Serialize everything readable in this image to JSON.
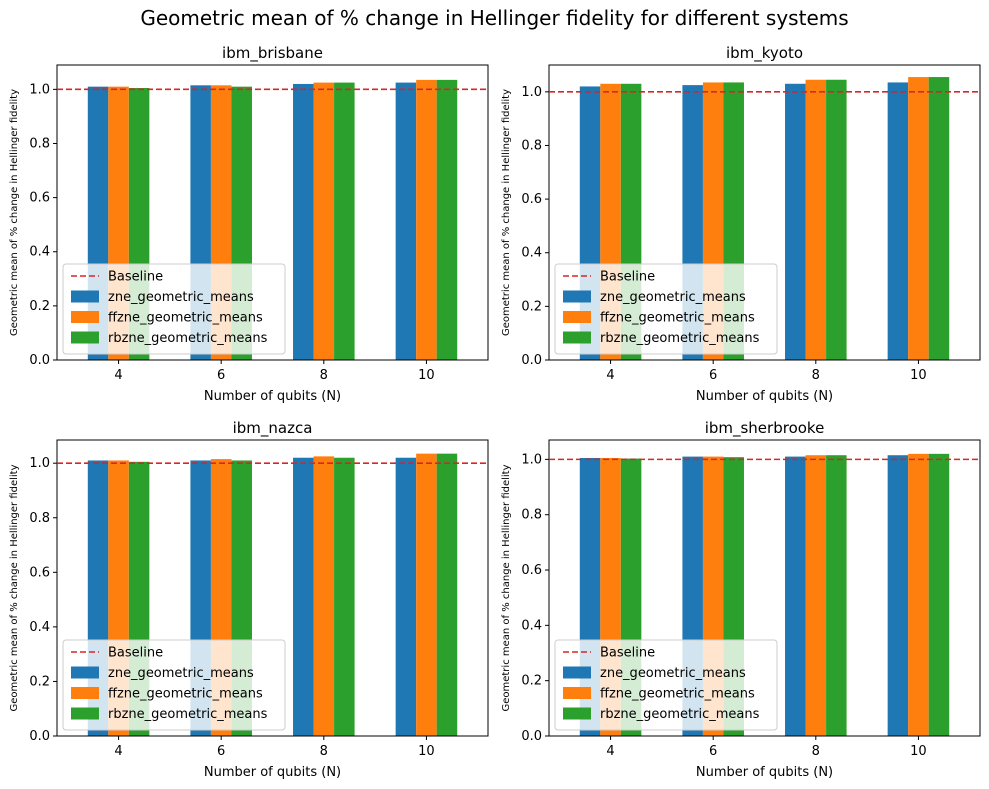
{
  "title": "Geometric mean of % change in Hellinger fidelity for different systems",
  "colors": {
    "zne": "#1f77b4",
    "ffzne": "#ff7f0e",
    "rbzne": "#2ca02c",
    "baseline": "#d62728"
  },
  "chart_data": [
    {
      "type": "bar",
      "title": "ibm_brisbane",
      "xlabel": "Number of qubits (N)",
      "ylabel": "Geometric mean of % change in Hellinger fidelity",
      "categories": [
        "4",
        "6",
        "8",
        "10"
      ],
      "ylim": [
        0,
        1.09
      ],
      "yticks": [
        "0.0",
        "0.2",
        "0.4",
        "0.6",
        "0.8",
        "1.0"
      ],
      "baseline": 1.0,
      "legend_position": "lower-left",
      "legend_baseline": "Baseline",
      "series": [
        {
          "name": "zne_geometric_means",
          "values": [
            1.01,
            1.015,
            1.02,
            1.025
          ]
        },
        {
          "name": "ffzne_geometric_means",
          "values": [
            1.01,
            1.015,
            1.025,
            1.035
          ]
        },
        {
          "name": "rbzne_geometric_means",
          "values": [
            1.005,
            1.01,
            1.025,
            1.035
          ]
        }
      ]
    },
    {
      "type": "bar",
      "title": "ibm_kyoto",
      "xlabel": "Number of qubits (N)",
      "ylabel": "Geometric mean of % change in Hellinger fidelity",
      "categories": [
        "4",
        "6",
        "8",
        "10"
      ],
      "ylim": [
        0,
        1.1
      ],
      "yticks": [
        "0.0",
        "0.2",
        "0.4",
        "0.6",
        "0.8",
        "1.0"
      ],
      "baseline": 1.0,
      "legend_position": "lower-left",
      "legend_baseline": "Baseline",
      "series": [
        {
          "name": "zne_geometric_means",
          "values": [
            1.02,
            1.025,
            1.03,
            1.035
          ]
        },
        {
          "name": "ffzne_geometric_means",
          "values": [
            1.03,
            1.035,
            1.045,
            1.055
          ]
        },
        {
          "name": "rbzne_geometric_means",
          "values": [
            1.03,
            1.035,
            1.045,
            1.055
          ]
        }
      ]
    },
    {
      "type": "bar",
      "title": "ibm_nazca",
      "xlabel": "Number of qubits (N)",
      "ylabel": "Geometric mean of % change in Hellinger fidelity",
      "categories": [
        "4",
        "6",
        "8",
        "10"
      ],
      "ylim": [
        0,
        1.085
      ],
      "yticks": [
        "0.0",
        "0.2",
        "0.4",
        "0.6",
        "0.8",
        "1.0"
      ],
      "baseline": 1.0,
      "legend_position": "lower-left",
      "legend_baseline": "Baseline",
      "series": [
        {
          "name": "zne_geometric_means",
          "values": [
            1.01,
            1.01,
            1.02,
            1.02
          ]
        },
        {
          "name": "ffzne_geometric_means",
          "values": [
            1.01,
            1.015,
            1.025,
            1.035
          ]
        },
        {
          "name": "rbzne_geometric_means",
          "values": [
            1.005,
            1.01,
            1.02,
            1.035
          ]
        }
      ]
    },
    {
      "type": "bar",
      "title": "ibm_sherbrooke",
      "xlabel": "Number of qubits (N)",
      "ylabel": "Geometric mean of % change in Hellinger fidelity",
      "categories": [
        "4",
        "6",
        "8",
        "10"
      ],
      "ylim": [
        0,
        1.07
      ],
      "yticks": [
        "0.0",
        "0.2",
        "0.4",
        "0.6",
        "0.8",
        "1.0"
      ],
      "baseline": 1.0,
      "legend_position": "lower-left",
      "legend_baseline": "Baseline",
      "series": [
        {
          "name": "zne_geometric_means",
          "values": [
            1.005,
            1.01,
            1.01,
            1.015
          ]
        },
        {
          "name": "ffzne_geometric_means",
          "values": [
            1.005,
            1.01,
            1.015,
            1.02
          ]
        },
        {
          "name": "rbzne_geometric_means",
          "values": [
            1.003,
            1.008,
            1.015,
            1.02
          ]
        }
      ]
    }
  ]
}
